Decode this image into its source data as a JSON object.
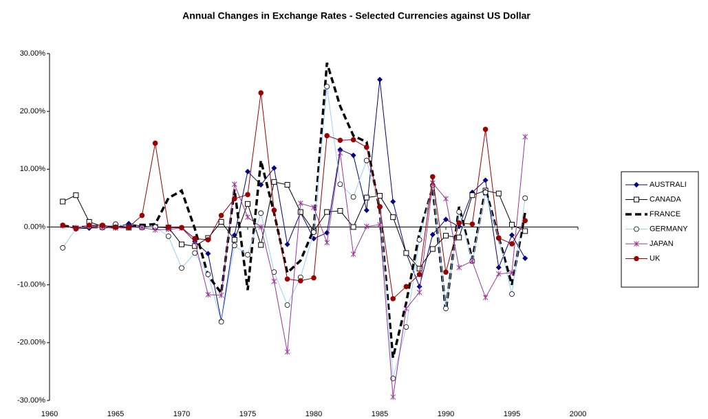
{
  "chart_data": {
    "type": "line",
    "title": "Annual Changes in Exchange Rates - Selected Currencies against US Dollar",
    "x": [
      1961,
      1962,
      1963,
      1964,
      1965,
      1966,
      1967,
      1968,
      1969,
      1970,
      1971,
      1972,
      1973,
      1974,
      1975,
      1976,
      1977,
      1978,
      1979,
      1980,
      1981,
      1982,
      1983,
      1984,
      1985,
      1986,
      1987,
      1988,
      1989,
      1990,
      1991,
      1992,
      1993,
      1994,
      1995,
      1996
    ],
    "xlim": [
      1960,
      2000
    ],
    "xticks": [
      1960,
      1965,
      1970,
      1975,
      1980,
      1985,
      1990,
      1995,
      2000
    ],
    "ylim": [
      -30,
      30
    ],
    "yticks": [
      {
        "value": -30,
        "label": "-30.00%"
      },
      {
        "value": -20,
        "label": "-20.00%"
      },
      {
        "value": -10,
        "label": "-10.00%"
      },
      {
        "value": 0,
        "label": "0.00%"
      },
      {
        "value": 10,
        "label": "10.00%"
      },
      {
        "value": 20,
        "label": "20.00%"
      },
      {
        "value": 30,
        "label": "30.00%"
      }
    ],
    "legend": "right",
    "series": [
      {
        "name": "AUSTRALI",
        "color": "#000080",
        "marker": "diamond",
        "dash": false,
        "values": [
          0.3,
          -0.3,
          -0.2,
          0.1,
          -0.1,
          0.6,
          0.1,
          0,
          -0.1,
          -0.1,
          -2.5,
          -4.6,
          -16.2,
          -1.4,
          9.6,
          7.3,
          10.2,
          -3.0,
          2.5,
          -2.0,
          -1.0,
          13.4,
          12.4,
          2.9,
          25.5,
          4.4,
          -4.5,
          -10.3,
          -1.3,
          1.3,
          0.1,
          6.0,
          8.1,
          -7.0,
          -1.4,
          -5.4
        ]
      },
      {
        "name": "CANADA",
        "color": "#000000",
        "marker": "square",
        "dash": false,
        "values": [
          4.4,
          5.5,
          0.9,
          0.1,
          0.1,
          -0.1,
          0.1,
          0,
          -0.1,
          -3.0,
          -3.3,
          -1.9,
          0.9,
          -2.2,
          4.0,
          -3.1,
          7.8,
          7.3,
          2.6,
          -0.7,
          2.6,
          2.8,
          0.0,
          5.1,
          5.4,
          1.7,
          -4.5,
          -7.2,
          -3.8,
          -1.5,
          -1.8,
          5.5,
          6.3,
          5.8,
          0.4,
          -0.7
        ]
      },
      {
        "name": "FRANCE",
        "color": "#000000",
        "marker": "none",
        "dash": true,
        "values": [
          0.2,
          0,
          0,
          0,
          0,
          0,
          0.3,
          0.5,
          5.0,
          6.3,
          -0.3,
          -8.4,
          -11.4,
          6.5,
          -10.9,
          11.5,
          2.4,
          -7.9,
          -5.8,
          -0.4,
          28.4,
          20.9,
          15.8,
          14.7,
          2.9,
          -22.6,
          -13.1,
          -1.0,
          6.8,
          -14.5,
          3.5,
          -5.6,
          6.6,
          -1.8,
          -10.0,
          2.5
        ]
      },
      {
        "name": "GERMANY",
        "color": "#99ccff",
        "marker": "circle-open",
        "dash": false,
        "values": [
          -3.6,
          -0.3,
          0.1,
          -0.1,
          0.5,
          0,
          -0.1,
          0,
          -1.6,
          -7.1,
          -4.5,
          -8.2,
          -16.4,
          -3.2,
          -4.8,
          2.4,
          -7.8,
          -13.5,
          -8.7,
          -0.9,
          24.3,
          7.4,
          5.2,
          11.5,
          3.5,
          -26.2,
          -17.3,
          -2.2,
          7.2,
          -14.1,
          2.6,
          -5.9,
          6.0,
          -1.9,
          -11.6,
          5.0
        ]
      },
      {
        "name": "JAPAN",
        "color": "#993399",
        "marker": "star",
        "dash": false,
        "values": [
          0.2,
          -0.1,
          0.2,
          -0.1,
          -0.2,
          0,
          -0.1,
          -0.5,
          -0.4,
          -0.2,
          -2.5,
          -11.7,
          -11.8,
          7.4,
          1.7,
          0,
          -9.4,
          -21.6,
          4.1,
          3.4,
          -2.7,
          12.8,
          -4.7,
          0.1,
          0.4,
          -29.4,
          -14.1,
          -11.3,
          7.6,
          4.9,
          -7.0,
          -5.9,
          -12.2,
          -8.1,
          -7.9,
          15.6
        ]
      },
      {
        "name": "UK",
        "color": "#990000",
        "marker": "circle",
        "dash": false,
        "values": [
          0.3,
          -0.3,
          0.3,
          0.3,
          0,
          0,
          2.0,
          14.5,
          0,
          -0.1,
          -2.0,
          -2.2,
          2.0,
          4.9,
          5.6,
          23.2,
          2.9,
          -9.0,
          -9.3,
          -8.8,
          15.8,
          15.0,
          15.1,
          13.8,
          3.5,
          -12.4,
          -10.3,
          -8.2,
          8.7,
          -7.8,
          0.7,
          0.5,
          16.9,
          -1.9,
          -2.9,
          1.1
        ]
      }
    ]
  }
}
